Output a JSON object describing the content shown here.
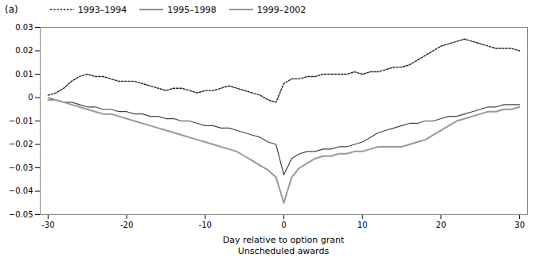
{
  "chart_data": {
    "type": "line",
    "title": "(a)",
    "xlabel": "Day relative to option grant\nUnscheduled awards",
    "x": [
      -30,
      -29,
      -28,
      -27,
      -26,
      -25,
      -24,
      -23,
      -22,
      -21,
      -20,
      -19,
      -18,
      -17,
      -16,
      -15,
      -14,
      -13,
      -12,
      -11,
      -10,
      -9,
      -8,
      -7,
      -6,
      -5,
      -4,
      -3,
      -2,
      -1,
      0,
      1,
      2,
      3,
      4,
      5,
      6,
      7,
      8,
      9,
      10,
      11,
      12,
      13,
      14,
      15,
      16,
      17,
      18,
      19,
      20,
      21,
      22,
      23,
      24,
      25,
      26,
      27,
      28,
      29,
      30
    ],
    "series": [
      {
        "name": "1993–1994",
        "color": "#222222",
        "line_style": "dotted",
        "values": [
          0.001,
          0.002,
          0.004,
          0.007,
          0.009,
          0.01,
          0.009,
          0.009,
          0.008,
          0.007,
          0.007,
          0.007,
          0.006,
          0.005,
          0.004,
          0.003,
          0.004,
          0.004,
          0.003,
          0.002,
          0.003,
          0.003,
          0.004,
          0.005,
          0.004,
          0.003,
          0.002,
          0.001,
          -0.001,
          -0.002,
          0.006,
          0.008,
          0.008,
          0.009,
          0.009,
          0.01,
          0.01,
          0.01,
          0.01,
          0.011,
          0.01,
          0.011,
          0.011,
          0.012,
          0.013,
          0.013,
          0.014,
          0.016,
          0.018,
          0.02,
          0.022,
          0.023,
          0.024,
          0.025,
          0.024,
          0.023,
          0.022,
          0.021,
          0.021,
          0.021,
          0.02
        ]
      },
      {
        "name": "1995–1998",
        "color": "#444444",
        "line_style": "solid",
        "values": [
          0.0,
          -0.001,
          -0.002,
          -0.002,
          -0.003,
          -0.004,
          -0.004,
          -0.005,
          -0.005,
          -0.006,
          -0.006,
          -0.007,
          -0.007,
          -0.008,
          -0.008,
          -0.009,
          -0.009,
          -0.01,
          -0.01,
          -0.011,
          -0.012,
          -0.012,
          -0.013,
          -0.013,
          -0.014,
          -0.015,
          -0.016,
          -0.017,
          -0.019,
          -0.02,
          -0.033,
          -0.026,
          -0.024,
          -0.023,
          -0.023,
          -0.022,
          -0.022,
          -0.021,
          -0.021,
          -0.02,
          -0.019,
          -0.017,
          -0.015,
          -0.014,
          -0.013,
          -0.012,
          -0.011,
          -0.011,
          -0.01,
          -0.01,
          -0.009,
          -0.008,
          -0.008,
          -0.007,
          -0.006,
          -0.005,
          -0.004,
          -0.004,
          -0.003,
          -0.003,
          -0.003
        ]
      },
      {
        "name": "1999–2002",
        "color": "#999999",
        "line_style": "solid",
        "values": [
          -0.001,
          -0.001,
          -0.002,
          -0.003,
          -0.004,
          -0.005,
          -0.006,
          -0.007,
          -0.007,
          -0.008,
          -0.009,
          -0.01,
          -0.011,
          -0.012,
          -0.013,
          -0.014,
          -0.015,
          -0.016,
          -0.017,
          -0.018,
          -0.019,
          -0.02,
          -0.021,
          -0.022,
          -0.023,
          -0.025,
          -0.027,
          -0.029,
          -0.031,
          -0.034,
          -0.045,
          -0.034,
          -0.03,
          -0.028,
          -0.026,
          -0.025,
          -0.025,
          -0.024,
          -0.024,
          -0.023,
          -0.023,
          -0.022,
          -0.021,
          -0.021,
          -0.021,
          -0.021,
          -0.02,
          -0.019,
          -0.018,
          -0.016,
          -0.014,
          -0.012,
          -0.01,
          -0.009,
          -0.008,
          -0.007,
          -0.006,
          -0.006,
          -0.005,
          -0.005,
          -0.004
        ]
      }
    ],
    "xlim": [
      -31,
      31
    ],
    "xticks": [
      -30,
      -20,
      -10,
      0,
      10,
      20,
      30
    ],
    "ylim": [
      -0.05,
      0.03
    ],
    "yticks": [
      {
        "value": -0.05,
        "label": "−0.05"
      },
      {
        "value": -0.04,
        "label": "−0.04"
      },
      {
        "value": -0.03,
        "label": "−0.03"
      },
      {
        "value": -0.02,
        "label": "−0.02"
      },
      {
        "value": -0.01,
        "label": "−0.01"
      },
      0,
      0.01,
      0.02,
      0.03
    ],
    "grid": false,
    "legend": "top"
  }
}
